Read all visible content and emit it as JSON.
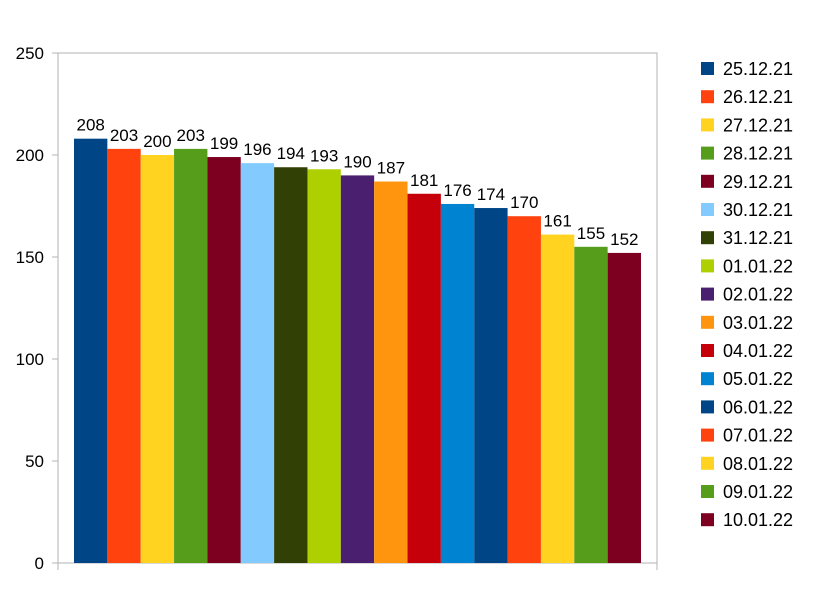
{
  "chart_data": {
    "type": "bar",
    "categories": [
      "25.12.21",
      "26.12.21",
      "27.12.21",
      "28.12.21",
      "29.12.21",
      "30.12.21",
      "31.12.21",
      "01.01.22",
      "02.01.22",
      "03.01.22",
      "04.01.22",
      "05.01.22",
      "06.01.22",
      "07.01.22",
      "08.01.22",
      "09.01.22",
      "10.01.22"
    ],
    "values": [
      208,
      203,
      200,
      203,
      199,
      196,
      194,
      193,
      190,
      187,
      181,
      176,
      174,
      170,
      161,
      155,
      152
    ],
    "colors": [
      "#004586",
      "#ff420e",
      "#ffd320",
      "#579d1c",
      "#7e0021",
      "#83caff",
      "#314004",
      "#aecf00",
      "#4b1f6f",
      "#ff950e",
      "#c5000b",
      "#0084d1",
      "#004586",
      "#ff420e",
      "#ffd320",
      "#579d1c",
      "#7e0021"
    ],
    "title": "",
    "xlabel": "",
    "ylabel": "",
    "ylim": [
      0,
      250
    ],
    "yticks": [
      0,
      50,
      100,
      150,
      200,
      250
    ],
    "grid": false,
    "data_labels": true,
    "legend": "right"
  }
}
